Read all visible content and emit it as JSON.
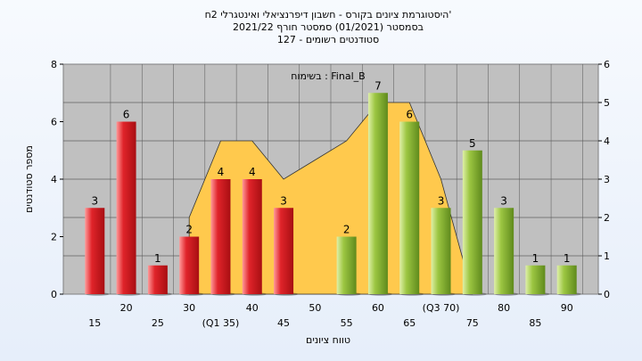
{
  "chart_data": {
    "type": "bar",
    "title_lines": [
      "היסטוגרמת ציונים בקורס - חשבון דיפרנציאלי ואינטגרלי 2ח'",
      "בסמסטר  (01/2021)  סמסטר חורף 2021/22",
      "סטודנטים רשומים - 127"
    ],
    "xlabel": "טווח ציונים",
    "ylabel": "מספר סטודנטים",
    "legend": "בשימוח : Final_B",
    "categories": [
      "15",
      "20",
      "25",
      "30",
      "(Q1 35)",
      "40",
      "45",
      "50",
      "55",
      "60",
      "65",
      "(Q3 70)",
      "75",
      "80",
      "85",
      "90"
    ],
    "values": [
      3,
      6,
      1,
      2,
      4,
      4,
      3,
      0,
      2,
      7,
      6,
      3,
      5,
      3,
      1,
      1
    ],
    "bar_colors": [
      "red",
      "red",
      "red",
      "red",
      "red",
      "red",
      "red",
      "red",
      "green",
      "green",
      "green",
      "green",
      "green",
      "green",
      "green",
      "green"
    ],
    "ylim_left": [
      0,
      8
    ],
    "ylim_right": [
      0,
      6
    ],
    "yticks_left": [
      "0",
      "2",
      "4",
      "6",
      "8"
    ],
    "yticks_right": [
      "0",
      "1",
      "2",
      "3",
      "4",
      "5",
      "6"
    ],
    "distribution_curve": [
      {
        "x": "30",
        "y": 2.0
      },
      {
        "x": "(Q1 35)",
        "y": 4.0
      },
      {
        "x": "40",
        "y": 4.0
      },
      {
        "x": "45",
        "y": 3.0
      },
      {
        "x": "50",
        "y": 3.5
      },
      {
        "x": "55",
        "y": 4.0
      },
      {
        "x": "60",
        "y": 5.0
      },
      {
        "x": "65",
        "y": 5.0
      },
      {
        "x": "(Q3 70)",
        "y": 3.0
      },
      {
        "x": "75",
        "y": 0.0
      }
    ],
    "colors": {
      "plot_bg": "#c0c0c0",
      "area_fill": "#ffc94d",
      "red_bar_light": "#ff9a9a",
      "red_bar": "#e0242a",
      "red_bar_dark": "#a80e12",
      "green_bar_light": "#dff0a8",
      "green_bar": "#9cc642",
      "green_bar_dark": "#5f8a1c"
    },
    "grid": true
  }
}
